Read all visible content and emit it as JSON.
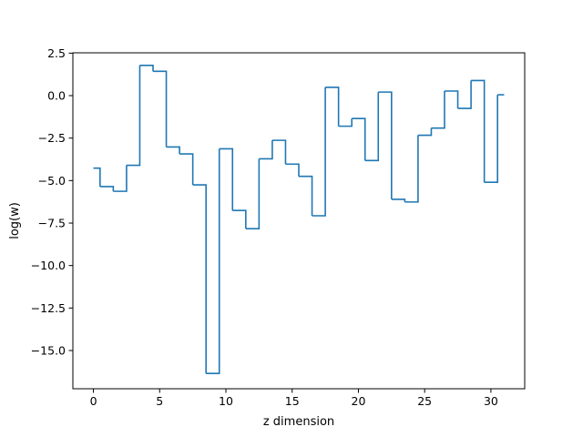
{
  "chart_data": {
    "type": "line",
    "drawstyle": "steps-mid",
    "title": "",
    "xlabel": "z dimension",
    "ylabel": "log(w)",
    "xlim": [
      -1.55,
      32.55
    ],
    "ylim": [
      -17.25,
      2.52
    ],
    "grid": false,
    "legend": "none",
    "x": [
      0,
      1,
      2,
      3,
      4,
      5,
      6,
      7,
      8,
      9,
      10,
      11,
      12,
      13,
      14,
      15,
      16,
      17,
      18,
      19,
      20,
      21,
      22,
      23,
      24,
      25,
      26,
      27,
      28,
      29,
      30,
      31
    ],
    "series": [
      {
        "values": [
          -4.27,
          -5.35,
          -5.63,
          -4.1,
          1.78,
          1.43,
          -3.02,
          -3.43,
          -5.25,
          -16.35,
          -3.13,
          -6.76,
          -7.83,
          -3.72,
          -2.63,
          -4.03,
          -4.75,
          -7.07,
          0.49,
          -1.8,
          -1.35,
          -3.82,
          0.21,
          -6.1,
          -6.26,
          -2.33,
          -1.91,
          0.27,
          -0.75,
          0.89,
          -5.1,
          0.05
        ],
        "color": "#1f77b4"
      }
    ],
    "xticks": [
      0,
      5,
      10,
      15,
      20,
      25,
      30
    ],
    "xtick_labels": [
      "0",
      "5",
      "10",
      "15",
      "20",
      "25",
      "30"
    ],
    "yticks": [
      2.5,
      0.0,
      -2.5,
      -5.0,
      -7.5,
      -10.0,
      -12.5,
      -15.0
    ],
    "ytick_labels": [
      "2.5",
      "0.0",
      "−2.5",
      "−5.0",
      "−7.5",
      "−10.0",
      "−12.5",
      "−15.0"
    ]
  }
}
